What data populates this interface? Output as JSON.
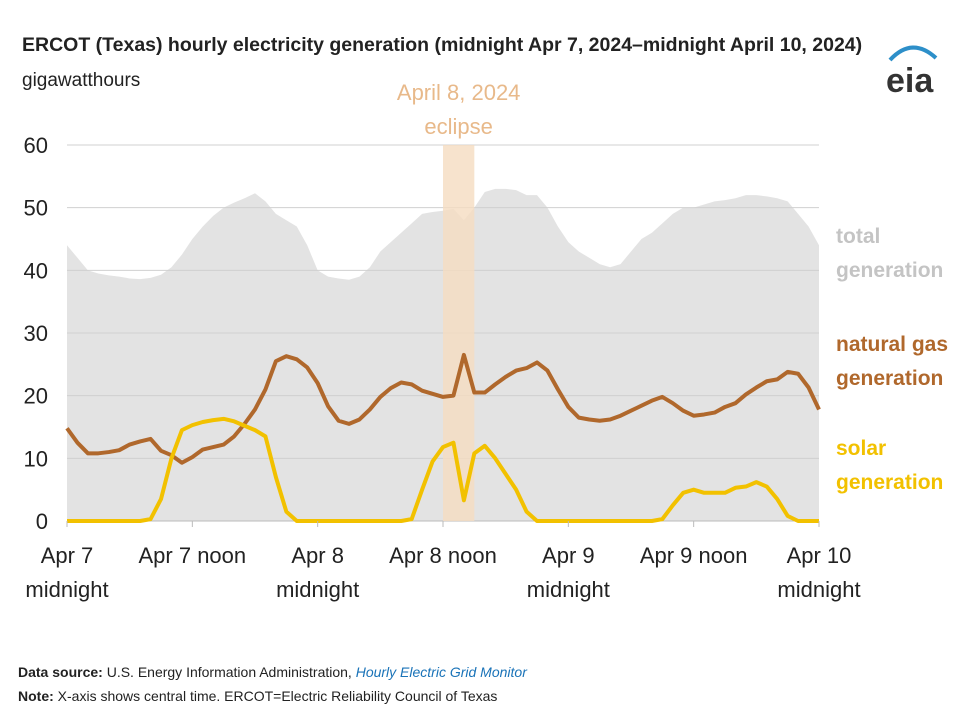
{
  "chart_data": {
    "type": "line",
    "title": "ERCOT (Texas) hourly electricity generation (midnight Apr 7, 2024–midnight April 10, 2024)",
    "subtitle": "gigawatthours",
    "x": [
      0,
      1,
      2,
      3,
      4,
      5,
      6,
      7,
      8,
      9,
      10,
      11,
      12,
      13,
      14,
      15,
      16,
      17,
      18,
      19,
      20,
      21,
      22,
      23,
      24,
      25,
      26,
      27,
      28,
      29,
      30,
      31,
      32,
      33,
      34,
      35,
      36,
      37,
      38,
      39,
      40,
      41,
      42,
      43,
      44,
      45,
      46,
      47,
      48,
      49,
      50,
      51,
      52,
      53,
      54,
      55,
      56,
      57,
      58,
      59,
      60,
      61,
      62,
      63,
      64,
      65,
      66,
      67,
      68,
      69,
      70,
      71,
      72
    ],
    "xlim": [
      0,
      72
    ],
    "xticks": [
      {
        "value": 0,
        "label": "Apr 7 midnight"
      },
      {
        "value": 12,
        "label": "Apr 7  noon"
      },
      {
        "value": 24,
        "label": "Apr 8 midnight"
      },
      {
        "value": 36,
        "label": "Apr 8  noon"
      },
      {
        "value": 48,
        "label": "Apr 9 midnight"
      },
      {
        "value": 60,
        "label": "Apr 9  noon"
      },
      {
        "value": 72,
        "label": "Apr 10 midnight"
      }
    ],
    "ylim": [
      0,
      60
    ],
    "yticks": [
      0,
      10,
      20,
      30,
      40,
      50,
      60
    ],
    "grid": true,
    "highlight": {
      "lines": [
        "April 8, 2024",
        "eclipse"
      ],
      "xlim": [
        36,
        39
      ],
      "color": "#f5dcc0"
    },
    "series": [
      {
        "name": "total generation",
        "kind": "area",
        "color": "#e3e3e3",
        "label_color": "#c4c4c4",
        "values": [
          44,
          42,
          40,
          39.5,
          39.2,
          39,
          38.7,
          38.6,
          38.8,
          39.3,
          40.5,
          42.5,
          45,
          47,
          48.7,
          50,
          50.8,
          51.5,
          52.3,
          51,
          49,
          48,
          47,
          44,
          40,
          39,
          38.7,
          38.5,
          39,
          40.5,
          43,
          44.5,
          46,
          47.5,
          49,
          49.3,
          49.5,
          49.8,
          48,
          50,
          52.5,
          53,
          53,
          52.8,
          52,
          52,
          50,
          47,
          44.5,
          43,
          42,
          41,
          40.5,
          41,
          43,
          45,
          46,
          47.5,
          49,
          50,
          50,
          50.5,
          51,
          51.2,
          51.5,
          52,
          52,
          51.8,
          51.5,
          51,
          49,
          47,
          44
        ]
      },
      {
        "name": "natural gas generation",
        "kind": "line",
        "color": "#b0682c",
        "label_color": "#b0682c",
        "values": [
          14.8,
          12.5,
          10.8,
          10.8,
          11,
          11.3,
          12.2,
          12.7,
          13.1,
          11.2,
          10.5,
          9.3,
          10.2,
          11.4,
          11.8,
          12.2,
          13.5,
          15.5,
          17.8,
          21,
          25.5,
          26.3,
          25.8,
          24.5,
          22,
          18.3,
          16,
          15.5,
          16.2,
          17.8,
          19.8,
          21.2,
          22.1,
          21.8,
          20.8,
          20.3,
          19.8,
          20,
          26.5,
          20.5,
          20.5,
          21.8,
          23,
          24,
          24.4,
          25.3,
          24,
          21,
          18.2,
          16.5,
          16.2,
          16,
          16.2,
          16.8,
          17.6,
          18.4,
          19.2,
          19.8,
          18.8,
          17.6,
          16.8,
          17,
          17.3,
          18.2,
          18.8,
          20.2,
          21.3,
          22.3,
          22.6,
          23.8,
          23.5,
          21.3,
          17.8
        ]
      },
      {
        "name": "solar generation",
        "kind": "line",
        "color": "#f2c100",
        "label_color": "#f2c100",
        "values": [
          0,
          0,
          0,
          0,
          0,
          0,
          0,
          0,
          0.3,
          3.5,
          10,
          14.5,
          15.3,
          15.8,
          16.1,
          16.3,
          15.9,
          15.2,
          14.5,
          13.5,
          7,
          1.5,
          0,
          0,
          0,
          0,
          0,
          0,
          0,
          0,
          0,
          0,
          0,
          0.3,
          5,
          9.5,
          11.8,
          12.5,
          3.3,
          10.8,
          12,
          10,
          7.5,
          5,
          1.5,
          0,
          0,
          0,
          0,
          0,
          0,
          0,
          0,
          0,
          0,
          0,
          0,
          0.3,
          2.5,
          4.5,
          5,
          4.5,
          4.5,
          4.5,
          5.3,
          5.5,
          6.2,
          5.5,
          3.5,
          0.8,
          0,
          0,
          0
        ]
      }
    ]
  },
  "logo": "eia",
  "footer": {
    "source_label": "Data source:",
    "source_text": "U.S. Energy Information Administration,",
    "source_link": "Hourly Electric Grid Monitor",
    "note_label": "Note:",
    "note_text": "X-axis shows central time. ERCOT=Electric Reliability Council of Texas"
  }
}
